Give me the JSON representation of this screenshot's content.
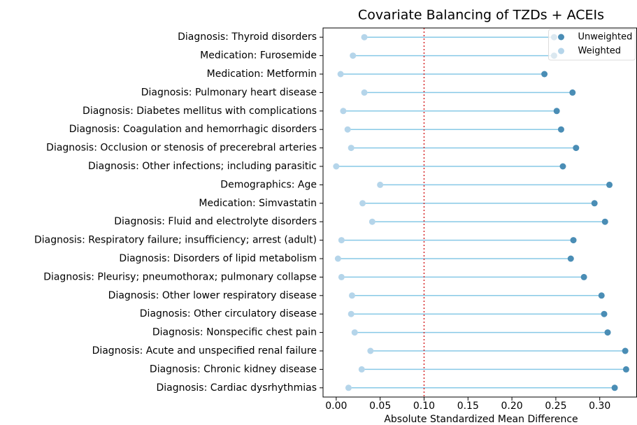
{
  "chart_data": {
    "type": "dumbbell",
    "title": "Covariate Balancing of TZDs + ACEIs",
    "x_label": "Absolute Standardized Mean Difference",
    "categories": [
      "Diagnosis: Thyroid disorders",
      "Medication: Furosemide",
      "Medication: Metformin",
      "Diagnosis: Pulmonary heart disease",
      "Diagnosis: Diabetes mellitus with complications",
      "Diagnosis: Coagulation and hemorrhagic disorders",
      "Diagnosis: Occlusion or stenosis of precerebral arteries",
      "Diagnosis: Other infections; including parasitic",
      "Demographics: Age",
      "Medication: Simvastatin",
      "Diagnosis: Fluid and electrolyte disorders",
      "Diagnosis: Respiratory failure; insufficiency; arrest (adult)",
      "Diagnosis: Disorders of lipid metabolism",
      "Diagnosis: Pleurisy; pneumothorax; pulmonary collapse",
      "Diagnosis: Other lower respiratory disease",
      "Diagnosis: Other circulatory disease",
      "Diagnosis: Nonspecific chest pain",
      "Diagnosis: Acute and unspecified renal failure",
      "Diagnosis: Chronic kidney disease",
      "Diagnosis: Cardiac dysrhythmias"
    ],
    "series": [
      {
        "name": "Unweighted",
        "color": "#4a8db5",
        "values": [
          0.248,
          0.248,
          0.237,
          0.269,
          0.251,
          0.256,
          0.273,
          0.258,
          0.311,
          0.294,
          0.306,
          0.27,
          0.267,
          0.282,
          0.302,
          0.305,
          0.309,
          0.329,
          0.33,
          0.317
        ]
      },
      {
        "name": "Weighted",
        "color": "#b5d5ea",
        "values": [
          0.032,
          0.019,
          0.005,
          0.032,
          0.008,
          0.013,
          0.017,
          0.0,
          0.05,
          0.03,
          0.041,
          0.006,
          0.002,
          0.006,
          0.018,
          0.017,
          0.021,
          0.039,
          0.029,
          0.014
        ]
      }
    ],
    "connector_color": "#87c9e6",
    "threshold": 0.1,
    "threshold_color": "#d62728",
    "xlim": [
      -0.015,
      0.342
    ],
    "xticks": [
      {
        "value": 0,
        "label": "0.00"
      },
      {
        "value": 0.05,
        "label": "0.05"
      },
      {
        "value": 0.1,
        "label": "0.10"
      },
      {
        "value": 0.15,
        "label": "0.15"
      },
      {
        "value": 0.2,
        "label": "0.20"
      },
      {
        "value": 0.25,
        "label": "0.25"
      },
      {
        "value": 0.3,
        "label": "0.30"
      }
    ],
    "legend": "upper right"
  }
}
